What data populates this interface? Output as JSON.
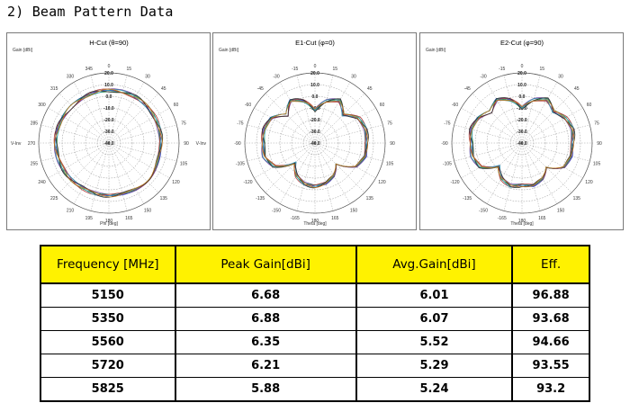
{
  "heading": "2) Beam Pattern Data",
  "colors": {
    "header_bg": "#fff200",
    "trace_colors": [
      "#1f3fbf",
      "#6b3fa0",
      "#2a8f4a",
      "#b03a3a",
      "#3a9fb0",
      "#333333",
      "#c07a20"
    ]
  },
  "chart_data": [
    {
      "type": "polar",
      "title": "H-Cut (θ=90)",
      "ylabel": "Gain [dBi]",
      "xlabel": "Phi [deg]",
      "radial_ticks": [
        "20.0",
        "10.0",
        "0.0",
        "-10.0",
        "-20.0",
        "-30.0",
        "-40.0"
      ],
      "rlim": [
        -40,
        20
      ],
      "angle_ticks": [
        "0",
        "15",
        "30",
        "45",
        "60",
        "75",
        "90",
        "105",
        "120",
        "135",
        "150",
        "165",
        "180",
        "195",
        "210",
        "225",
        "240",
        "255",
        "270",
        "285",
        "300",
        "315",
        "330",
        "345"
      ],
      "side_labels": [
        "V-Inv",
        "V-Inv"
      ],
      "series_count": 7,
      "angles_deg": [
        0,
        30,
        60,
        90,
        120,
        150,
        180,
        210,
        240,
        270,
        300,
        330
      ],
      "gain_dbi": [
        5,
        5.5,
        5,
        4.5,
        5,
        5.5,
        5,
        4.5,
        5,
        5.5,
        5,
        4.5
      ]
    },
    {
      "type": "polar",
      "title": "E1-Cut (φ=0)",
      "ylabel": "Gain [dBi]",
      "xlabel": "Theta [deg]",
      "radial_ticks": [
        "20.0",
        "10.0",
        "0.0",
        "-10.0",
        "-20.0",
        "-30.0",
        "-40.0"
      ],
      "rlim": [
        -40,
        20
      ],
      "angle_ticks": [
        "0",
        "15",
        "30",
        "45",
        "60",
        "75",
        "90",
        "105",
        "120",
        "135",
        "150",
        "165",
        "180",
        "-165",
        "-150",
        "-135",
        "-120",
        "-105",
        "-90",
        "-75",
        "-60",
        "-45",
        "-30",
        "-15"
      ],
      "series_count": 7,
      "angles_deg": [
        0,
        15,
        30,
        45,
        60,
        75,
        90,
        105,
        120,
        135,
        150,
        165,
        180,
        195,
        210,
        225,
        240,
        255,
        270,
        285,
        300,
        315,
        330,
        345
      ],
      "gain_dbi": [
        -12,
        -3,
        2,
        -6,
        3,
        5,
        4,
        5,
        0,
        -16,
        -8,
        -4,
        -3,
        -4,
        -8,
        -16,
        0,
        5,
        4,
        5,
        3,
        -6,
        2,
        -3
      ]
    },
    {
      "type": "polar",
      "title": "E2-Cut (φ=90)",
      "ylabel": "Gain [dBi]",
      "xlabel": "Theta [deg]",
      "radial_ticks": [
        "20.0",
        "10.0",
        "0.0",
        "-10.0",
        "-20.0",
        "-30.0",
        "-40.0"
      ],
      "rlim": [
        -40,
        20
      ],
      "angle_ticks": [
        "0",
        "15",
        "30",
        "45",
        "60",
        "75",
        "90",
        "105",
        "120",
        "135",
        "150",
        "165",
        "180",
        "-165",
        "-150",
        "-135",
        "-120",
        "-105",
        "-90",
        "-75",
        "-60",
        "-45",
        "-30",
        "-15"
      ],
      "series_count": 7,
      "angles_deg": [
        0,
        15,
        30,
        45,
        60,
        75,
        90,
        105,
        120,
        135,
        150,
        165,
        180,
        195,
        210,
        225,
        240,
        255,
        270,
        285,
        300,
        315,
        330,
        345
      ],
      "gain_dbi": [
        -10,
        -2,
        3,
        -2,
        3,
        5,
        3,
        4,
        1,
        -12,
        -5,
        -2,
        -4,
        -2,
        -5,
        -12,
        1,
        4,
        3,
        5,
        3,
        -2,
        3,
        -2
      ]
    }
  ],
  "table": {
    "headers": [
      "Frequency [MHz]",
      "Peak Gain[dBi]",
      "Avg.Gain[dBi]",
      "Eff."
    ],
    "rows": [
      [
        "5150",
        "6.68",
        "6.01",
        "96.88"
      ],
      [
        "5350",
        "6.88",
        "6.07",
        "93.68"
      ],
      [
        "5560",
        "6.35",
        "5.52",
        "94.66"
      ],
      [
        "5720",
        "6.21",
        "5.29",
        "93.55"
      ],
      [
        "5825",
        "5.88",
        "5.24",
        "93.2"
      ]
    ]
  }
}
